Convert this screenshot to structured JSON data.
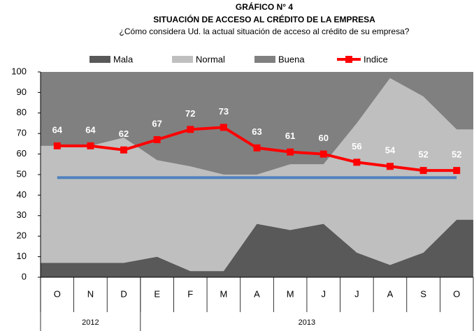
{
  "chart_data": {
    "type": "stacked_area_line",
    "title": "GRÁFICO N°  4",
    "subtitle": "SITUACIÓN  DE ACCESO AL CRÉDITO DE LA EMPRESA",
    "question": "¿Cómo considera Ud. la actual situación de acceso al crédito de su empresa?",
    "categories": [
      "O",
      "N",
      "D",
      "E",
      "F",
      "M",
      "A",
      "M",
      "J",
      "J",
      "A",
      "S",
      "O"
    ],
    "year_groups": [
      {
        "label": "2012",
        "count": 3
      },
      {
        "label": "2013",
        "count": 10
      }
    ],
    "series": [
      {
        "name": "Mala",
        "color": "#595959",
        "values": [
          7,
          7,
          7,
          10,
          3,
          3,
          26,
          23,
          26,
          12,
          6,
          12,
          28
        ]
      },
      {
        "name": "Normal",
        "color": "#bfbfbf",
        "values": [
          57,
          57,
          61,
          47,
          51,
          47,
          24,
          32,
          29,
          63,
          91,
          76,
          44
        ]
      },
      {
        "name": "Buena",
        "color": "#808080",
        "values": [
          36,
          36,
          32,
          43,
          46,
          50,
          50,
          45,
          45,
          25,
          3,
          12,
          28
        ]
      },
      {
        "name": "Indice",
        "color": "#ff0000",
        "type": "line",
        "values": [
          64,
          64,
          62,
          67,
          72,
          73,
          63,
          61,
          60,
          56,
          54,
          52,
          52
        ]
      }
    ],
    "reference_value": 48.5,
    "reference_color": "#4f81bd",
    "ylim": [
      0,
      100
    ],
    "yticks": [
      0,
      10,
      20,
      30,
      40,
      50,
      60,
      70,
      80,
      90,
      100
    ]
  }
}
